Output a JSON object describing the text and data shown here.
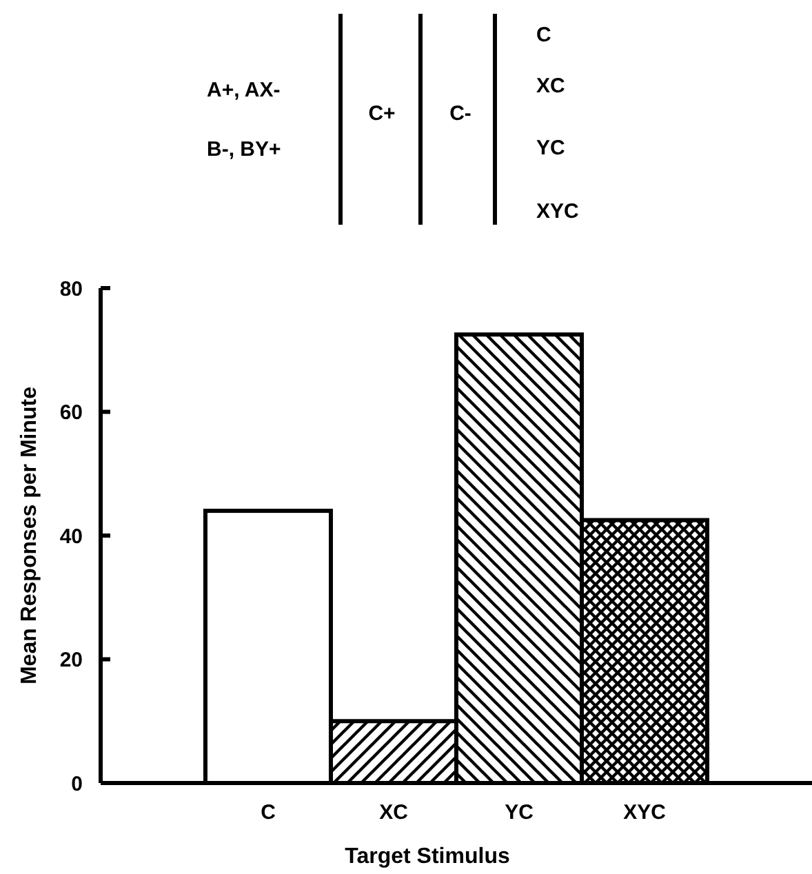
{
  "chart_data": {
    "type": "bar",
    "xlabel": "Target Stimulus",
    "ylabel": "Mean Responses per Minute",
    "categories": [
      "C",
      "XC",
      "YC",
      "XYC"
    ],
    "values": [
      44,
      10,
      72.5,
      42.5
    ],
    "colors": [
      "#ffffff",
      "#000000",
      "#000000",
      "#000000"
    ],
    "ylim": [
      0,
      80
    ],
    "yticks": [
      0,
      20,
      40,
      60,
      80
    ],
    "annotations": [
      "A+, AX-",
      "B-, BY+",
      "C+",
      "C-",
      "C",
      "XC",
      "YC",
      "XYC"
    ]
  }
}
